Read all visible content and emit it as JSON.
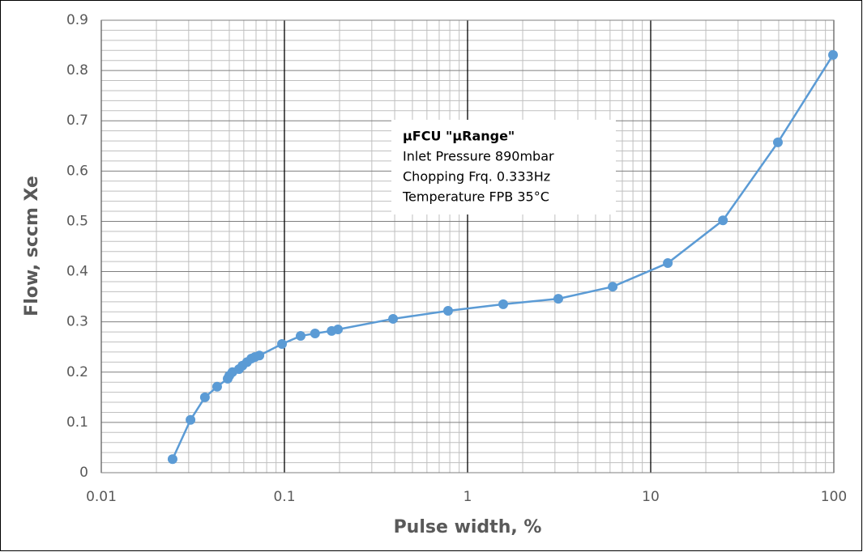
{
  "chart_data": {
    "type": "line",
    "x_label": "Pulse width, %",
    "y_label": "Flow, sccm Xe",
    "log_x": true,
    "grid": true,
    "annotation": [
      "μFCU \"μRange\"",
      "Inlet Pressure 890mbar",
      "Chopping Frq. 0.333Hz",
      "Temperature FPB 35°C"
    ],
    "xlim": [
      0.01,
      100
    ],
    "xticks": [
      0.01,
      0.1,
      1,
      10,
      100
    ],
    "ylim": [
      0,
      0.9
    ],
    "yticks": [
      0,
      0.1,
      0.2,
      0.3,
      0.4,
      0.5,
      0.6,
      0.7,
      0.8,
      0.9
    ],
    "series": [
      {
        "color": "#5b9bd5",
        "x": [
          0.0245,
          0.0307,
          0.0368,
          0.0429,
          0.049,
          0.05,
          0.052,
          0.0565,
          0.059,
          0.0625,
          0.066,
          0.069,
          0.073,
          0.097,
          0.1226,
          0.147,
          0.181,
          0.196,
          0.392,
          0.783,
          1.566,
          3.13,
          6.2,
          12.4,
          24.8,
          49.5,
          99
        ],
        "values": [
          0.027,
          0.105,
          0.15,
          0.171,
          0.187,
          0.193,
          0.2,
          0.206,
          0.213,
          0.22,
          0.227,
          0.23,
          0.233,
          0.256,
          0.272,
          0.277,
          0.282,
          0.285,
          0.306,
          0.322,
          0.335,
          0.346,
          0.37,
          0.417,
          0.502,
          0.657,
          0.831
        ]
      }
    ]
  }
}
